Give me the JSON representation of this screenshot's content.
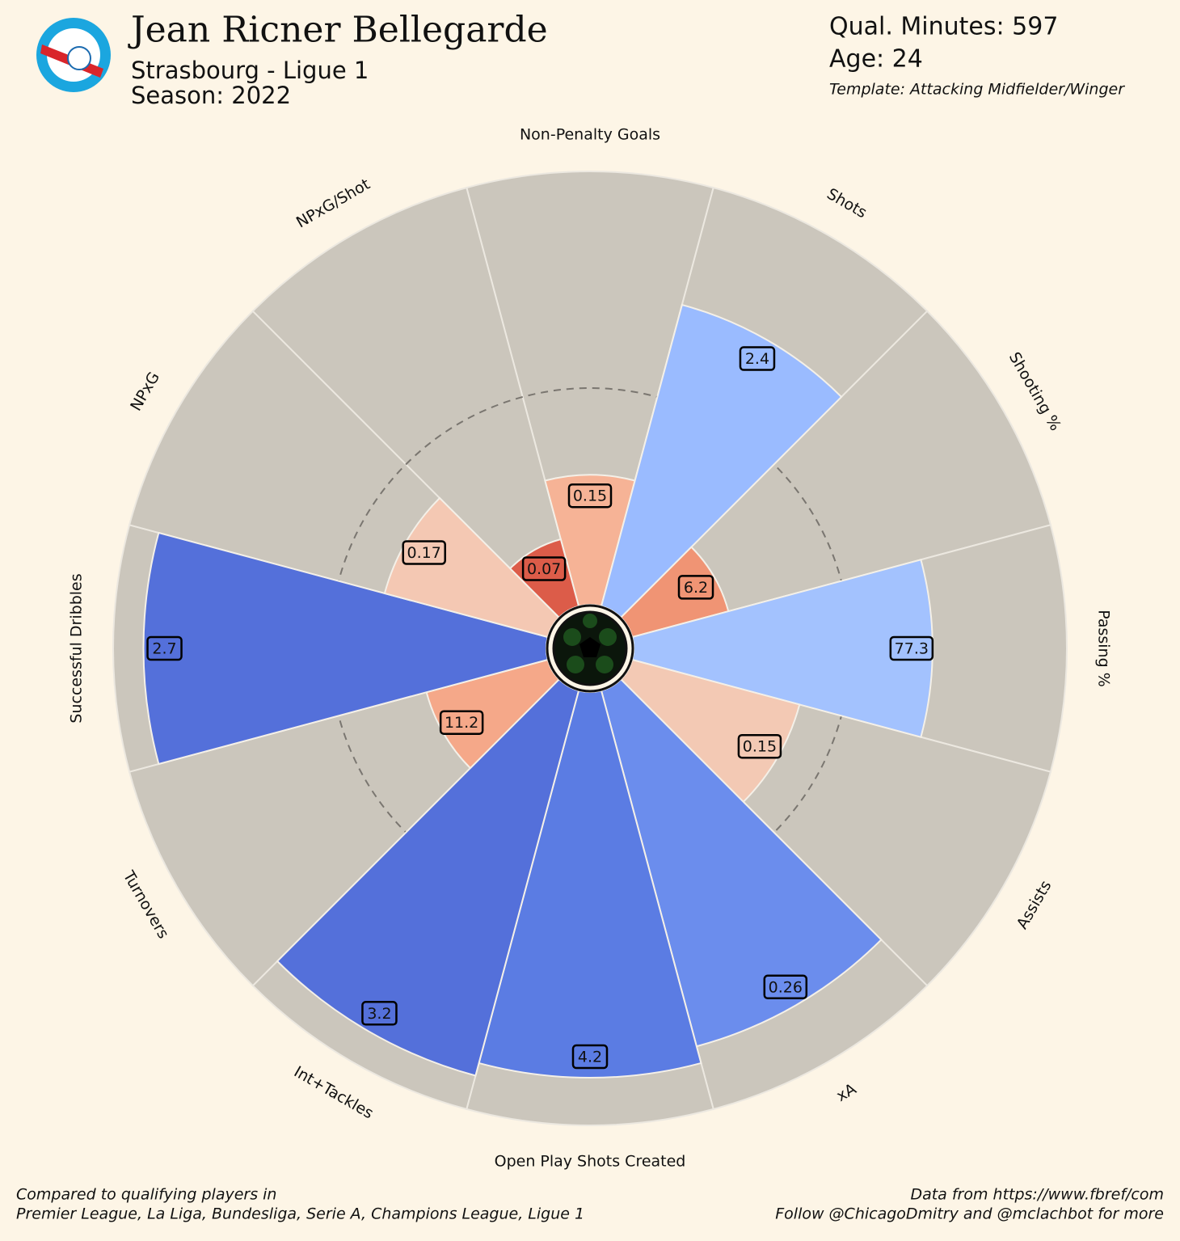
{
  "chart_data": {
    "type": "pizza",
    "title": "Jean Ricner Bellegarde",
    "subtitle": "Strasbourg - Ligue 1",
    "season": "Season: 2022",
    "minutes": "Qual. Minutes: 597",
    "age": "Age: 24",
    "template": "Template: Attacking Midfielder/Winger",
    "footer_left": [
      "Compared to qualifying players in",
      "Premier League, La Liga, Bundesliga, Serie A, Champions League, Ligue 1"
    ],
    "footer_right": [
      "Data from https://www.fbref/com",
      "Follow @ChicagoDmitry and @mclachbot for more"
    ],
    "categories": [
      "Non-Penalty Goals",
      "Shots",
      "Shooting %",
      "Passing %",
      "Assists",
      "xA",
      "Open Play Shots Created",
      "Int+Tackles",
      "Turnovers",
      "Successful Dribbles",
      "NPxG",
      "NPxG/Shot"
    ],
    "stats": [
      0.15,
      2.4,
      6.2,
      77.3,
      0.15,
      0.26,
      4.2,
      3.2,
      11.2,
      2.7,
      0.17,
      0.07
    ],
    "percentiles": [
      30,
      72,
      23,
      69,
      40,
      85,
      89,
      92,
      29,
      93,
      39,
      16
    ],
    "colors": [
      "#f6b396",
      "#9abbff",
      "#f09474",
      "#a3c2fe",
      "#f3c9b4",
      "#6b8ded",
      "#5b7ce3",
      "#5470da",
      "#f5a889",
      "#5470da",
      "#f4c8b3",
      "#dc5c49"
    ],
    "rlim": [
      0,
      100
    ],
    "rticks": [
      50
    ]
  }
}
